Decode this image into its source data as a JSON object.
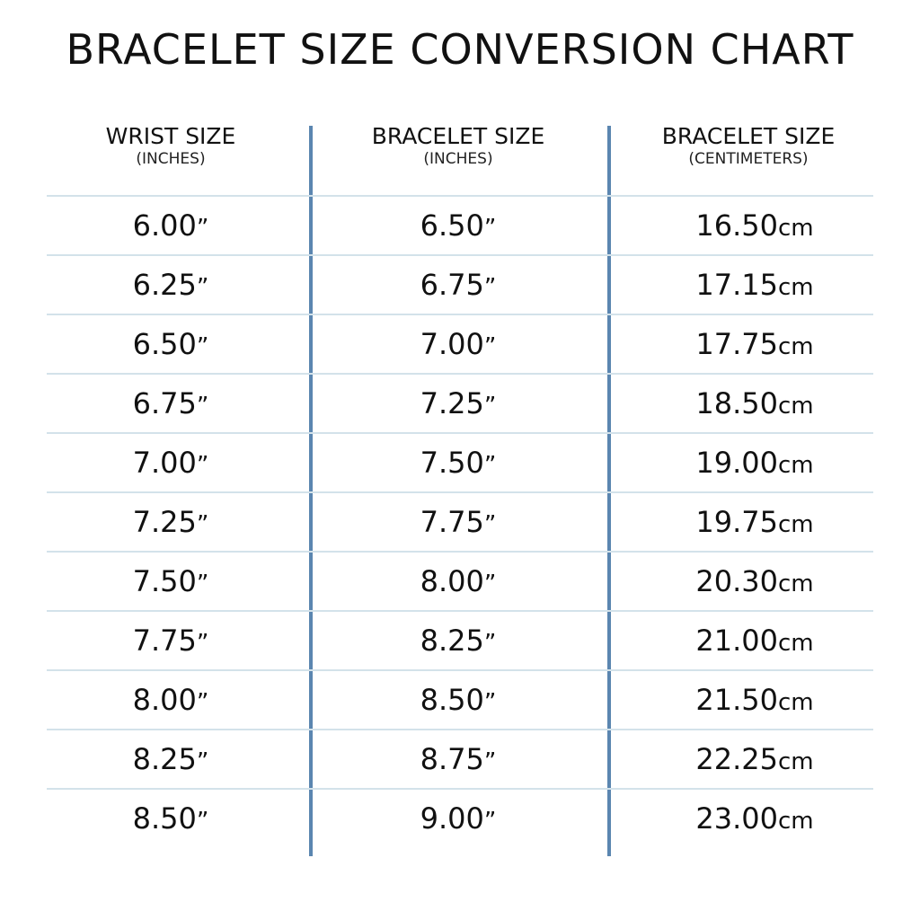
{
  "title": "BRACELET SIZE CONVERSION CHART",
  "colors": {
    "divider": "#5b86b0",
    "row_line": "#d3e2ea",
    "text": "#111111"
  },
  "chart_data": {
    "type": "table",
    "title": "BRACELET SIZE CONVERSION CHART",
    "columns": [
      {
        "label": "WRIST SIZE",
        "sublabel": "(INCHES)",
        "unit": "”"
      },
      {
        "label": "BRACELET SIZE",
        "sublabel": "(INCHES)",
        "unit": "”"
      },
      {
        "label": "BRACELET SIZE",
        "sublabel": "(CENTIMETERS)",
        "unit": "cm"
      }
    ],
    "rows": [
      [
        "6.00",
        "6.50",
        "16.50"
      ],
      [
        "6.25",
        "6.75",
        "17.15"
      ],
      [
        "6.50",
        "7.00",
        "17.75"
      ],
      [
        "6.75",
        "7.25",
        "18.50"
      ],
      [
        "7.00",
        "7.50",
        "19.00"
      ],
      [
        "7.25",
        "7.75",
        "19.75"
      ],
      [
        "7.50",
        "8.00",
        "20.30"
      ],
      [
        "7.75",
        "8.25",
        "21.00"
      ],
      [
        "8.00",
        "8.50",
        "21.50"
      ],
      [
        "8.25",
        "8.75",
        "22.25"
      ],
      [
        "8.50",
        "9.00",
        "23.00"
      ]
    ]
  }
}
